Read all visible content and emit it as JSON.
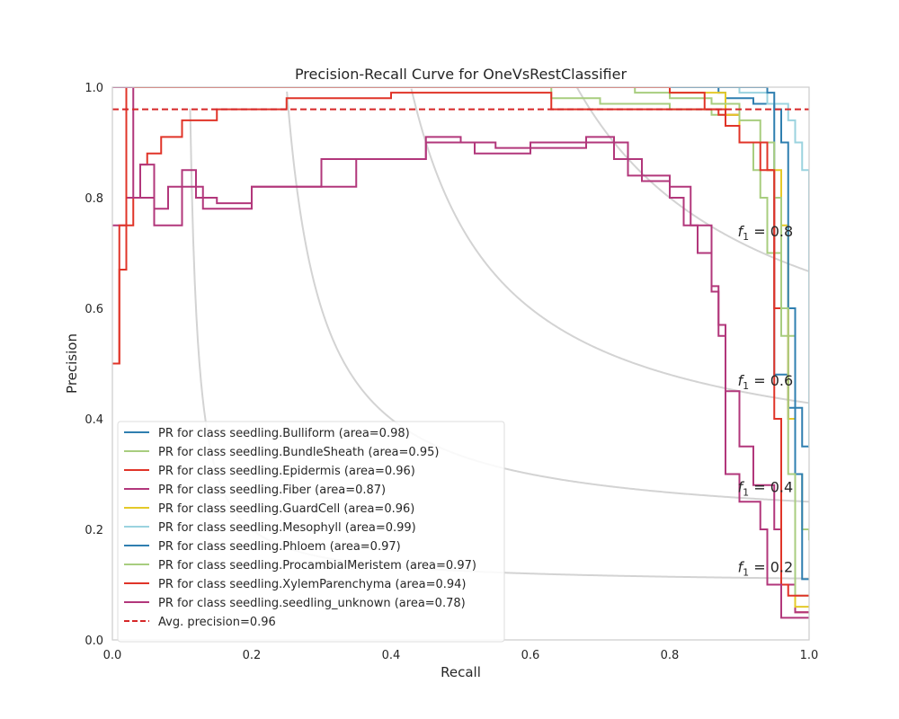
{
  "chart_data": {
    "type": "line",
    "title": "Precision-Recall Curve for OneVsRestClassifier",
    "xlabel": "Recall",
    "ylabel": "Precision",
    "xlim": [
      0.0,
      1.0
    ],
    "ylim": [
      0.0,
      1.0
    ],
    "x_ticks": [
      "0.0",
      "0.2",
      "0.4",
      "0.6",
      "0.8",
      "1.0"
    ],
    "y_ticks": [
      "0.0",
      "0.2",
      "0.4",
      "0.6",
      "0.8",
      "1.0"
    ],
    "grid": false,
    "legend_position": "lower-left",
    "average_precision": {
      "label": "Avg. precision=0.96",
      "value": 0.96,
      "color": "#d62728",
      "style": "dashed"
    },
    "iso_f1": [
      {
        "f": 0.2,
        "label": "f1 = 0.2"
      },
      {
        "f": 0.4,
        "label": "f1 = 0.4"
      },
      {
        "f": 0.6,
        "label": "f1 = 0.6"
      },
      {
        "f": 0.8,
        "label": "f1 = 0.8"
      }
    ],
    "series": [
      {
        "name": "PR for class seedling.Bulliform (area=0.98)",
        "color": "#2f7fb0",
        "points": [
          [
            0.0,
            1.0
          ],
          [
            0.86,
            1.0
          ],
          [
            0.87,
            0.99
          ],
          [
            0.88,
            0.98
          ],
          [
            0.92,
            0.97
          ],
          [
            0.95,
            0.96
          ],
          [
            0.95,
            0.48
          ],
          [
            0.97,
            0.42
          ],
          [
            0.99,
            0.35
          ],
          [
            1.0,
            0.35
          ]
        ]
      },
      {
        "name": "PR for class seedling.BundleSheath (area=0.95)",
        "color": "#a8cd7f",
        "points": [
          [
            0.0,
            1.0
          ],
          [
            0.63,
            0.98
          ],
          [
            0.7,
            0.97
          ],
          [
            0.8,
            0.96
          ],
          [
            0.86,
            0.95
          ],
          [
            0.9,
            0.9
          ],
          [
            0.92,
            0.85
          ],
          [
            0.93,
            0.8
          ],
          [
            0.94,
            0.7
          ],
          [
            0.96,
            0.55
          ],
          [
            0.98,
            0.3
          ],
          [
            0.99,
            0.2
          ],
          [
            1.0,
            0.18
          ]
        ]
      },
      {
        "name": "PR for class seedling.Epidermis (area=0.96)",
        "color": "#e03428",
        "points": [
          [
            0.0,
            0.5
          ],
          [
            0.01,
            0.67
          ],
          [
            0.02,
            0.75
          ],
          [
            0.03,
            0.8
          ],
          [
            0.04,
            0.86
          ],
          [
            0.05,
            0.88
          ],
          [
            0.07,
            0.91
          ],
          [
            0.1,
            0.94
          ],
          [
            0.15,
            0.96
          ],
          [
            0.25,
            0.98
          ],
          [
            0.4,
            0.99
          ],
          [
            0.6,
            0.99
          ],
          [
            0.63,
            0.96
          ],
          [
            0.8,
            0.96
          ],
          [
            0.87,
            0.95
          ],
          [
            0.9,
            0.9
          ],
          [
            0.93,
            0.85
          ],
          [
            0.95,
            0.6
          ],
          [
            0.97,
            0.4
          ],
          [
            0.98,
            0.2
          ],
          [
            0.98,
            0.05
          ],
          [
            1.0,
            0.05
          ]
        ]
      },
      {
        "name": "PR for class seedling.Fiber (area=0.87)",
        "color": "#b2377b",
        "points": [
          [
            0.0,
            0.75
          ],
          [
            0.02,
            0.8
          ],
          [
            0.04,
            0.86
          ],
          [
            0.06,
            0.78
          ],
          [
            0.08,
            0.82
          ],
          [
            0.1,
            0.85
          ],
          [
            0.12,
            0.8
          ],
          [
            0.15,
            0.79
          ],
          [
            0.2,
            0.82
          ],
          [
            0.3,
            0.87
          ],
          [
            0.45,
            0.91
          ],
          [
            0.5,
            0.9
          ],
          [
            0.55,
            0.89
          ],
          [
            0.68,
            0.91
          ],
          [
            0.72,
            0.87
          ],
          [
            0.76,
            0.83
          ],
          [
            0.8,
            0.8
          ],
          [
            0.82,
            0.75
          ],
          [
            0.84,
            0.7
          ],
          [
            0.86,
            0.63
          ],
          [
            0.87,
            0.57
          ],
          [
            0.88,
            0.45
          ],
          [
            0.9,
            0.35
          ],
          [
            0.92,
            0.28
          ],
          [
            0.95,
            0.2
          ],
          [
            0.96,
            0.1
          ],
          [
            0.98,
            0.05
          ],
          [
            1.0,
            0.05
          ]
        ]
      },
      {
        "name": "PR for class seedling.GuardCell (area=0.96)",
        "color": "#e4c929",
        "points": [
          [
            0.0,
            1.0
          ],
          [
            0.7,
            1.0
          ],
          [
            0.8,
            0.99
          ],
          [
            0.88,
            0.95
          ],
          [
            0.9,
            0.9
          ],
          [
            0.94,
            0.85
          ],
          [
            0.96,
            0.75
          ],
          [
            0.97,
            0.4
          ],
          [
            0.98,
            0.1
          ],
          [
            0.98,
            0.06
          ],
          [
            1.0,
            0.06
          ]
        ]
      },
      {
        "name": "PR for class seedling.Mesophyll (area=0.99)",
        "color": "#9bd3df",
        "points": [
          [
            0.0,
            1.0
          ],
          [
            0.86,
            1.0
          ],
          [
            0.9,
            0.99
          ],
          [
            0.94,
            0.97
          ],
          [
            0.97,
            0.94
          ],
          [
            0.98,
            0.9
          ],
          [
            0.99,
            0.85
          ],
          [
            1.0,
            0.55
          ],
          [
            1.0,
            0.35
          ]
        ]
      },
      {
        "name": "PR for class seedling.Phloem (area=0.97)",
        "color": "#2f7fb0",
        "points": [
          [
            0.0,
            1.0
          ],
          [
            0.9,
            1.0
          ],
          [
            0.94,
            0.99
          ],
          [
            0.95,
            0.96
          ],
          [
            0.96,
            0.9
          ],
          [
            0.97,
            0.82
          ],
          [
            0.97,
            0.6
          ],
          [
            0.98,
            0.3
          ],
          [
            0.99,
            0.11
          ],
          [
            1.0,
            0.11
          ]
        ]
      },
      {
        "name": "PR for class seedling.ProcambialMeristem (area=0.97)",
        "color": "#a8cd7f",
        "points": [
          [
            0.0,
            1.0
          ],
          [
            0.75,
            0.99
          ],
          [
            0.8,
            0.98
          ],
          [
            0.86,
            0.97
          ],
          [
            0.9,
            0.94
          ],
          [
            0.93,
            0.9
          ],
          [
            0.95,
            0.8
          ],
          [
            0.96,
            0.6
          ],
          [
            0.97,
            0.3
          ],
          [
            0.98,
            0.08
          ],
          [
            1.0,
            0.08
          ]
        ]
      },
      {
        "name": "PR for class seedling.XylemParenchyma (area=0.94)",
        "color": "#e03428",
        "points": [
          [
            0.0,
            0.5
          ],
          [
            0.01,
            0.75
          ],
          [
            0.02,
            1.0
          ],
          [
            0.7,
            1.0
          ],
          [
            0.8,
            0.99
          ],
          [
            0.85,
            0.96
          ],
          [
            0.88,
            0.93
          ],
          [
            0.9,
            0.9
          ],
          [
            0.94,
            0.85
          ],
          [
            0.95,
            0.4
          ],
          [
            0.96,
            0.1
          ],
          [
            0.97,
            0.08
          ],
          [
            1.0,
            0.08
          ]
        ]
      },
      {
        "name": "PR for class seedling.seedling_unknown (area=0.78)",
        "color": "#b2377b",
        "points": [
          [
            0.0,
            1.0
          ],
          [
            0.02,
            1.0
          ],
          [
            0.03,
            0.8
          ],
          [
            0.06,
            0.75
          ],
          [
            0.1,
            0.82
          ],
          [
            0.13,
            0.78
          ],
          [
            0.2,
            0.82
          ],
          [
            0.35,
            0.87
          ],
          [
            0.45,
            0.9
          ],
          [
            0.52,
            0.88
          ],
          [
            0.6,
            0.9
          ],
          [
            0.68,
            0.9
          ],
          [
            0.74,
            0.84
          ],
          [
            0.8,
            0.82
          ],
          [
            0.83,
            0.75
          ],
          [
            0.86,
            0.64
          ],
          [
            0.87,
            0.55
          ],
          [
            0.88,
            0.3
          ],
          [
            0.9,
            0.25
          ],
          [
            0.93,
            0.2
          ],
          [
            0.94,
            0.1
          ],
          [
            0.96,
            0.04
          ],
          [
            1.0,
            0.04
          ]
        ]
      }
    ]
  }
}
